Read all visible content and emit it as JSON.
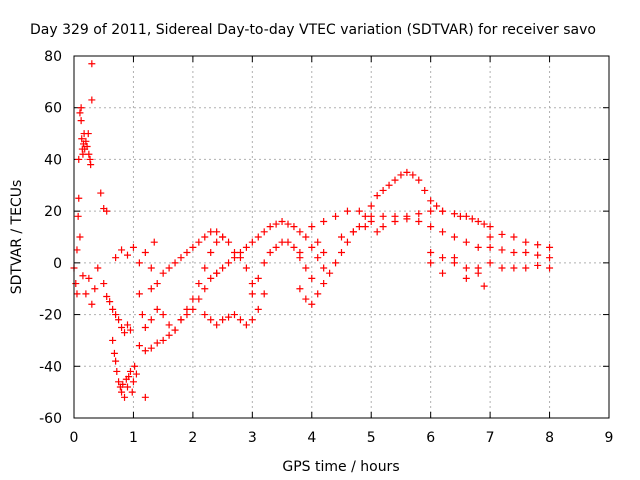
{
  "chart_data": {
    "type": "scatter",
    "title": "Day 329 of 2011, Sidereal Day-to-day VTEC variation (SDTVAR) for receiver savo",
    "xlabel": "GPS time / hours",
    "ylabel": "SDTVAR / TECUs",
    "xlim": [
      0,
      9
    ],
    "ylim": [
      -60,
      80
    ],
    "xticks": [
      0,
      1,
      2,
      3,
      4,
      5,
      6,
      7,
      8,
      9
    ],
    "yticks": [
      -60,
      -40,
      -20,
      0,
      20,
      40,
      60,
      80
    ],
    "grid": true,
    "marker": "+",
    "color": "#ff0000",
    "series": [
      {
        "name": "SDTVAR",
        "points": [
          [
            0.0,
            -2
          ],
          [
            0.03,
            -8
          ],
          [
            0.05,
            5
          ],
          [
            0.05,
            -12
          ],
          [
            0.07,
            18
          ],
          [
            0.08,
            40
          ],
          [
            0.08,
            25
          ],
          [
            0.1,
            58
          ],
          [
            0.1,
            10
          ],
          [
            0.12,
            60
          ],
          [
            0.12,
            55
          ],
          [
            0.13,
            48
          ],
          [
            0.14,
            44
          ],
          [
            0.15,
            42
          ],
          [
            0.16,
            46
          ],
          [
            0.17,
            50
          ],
          [
            0.18,
            44
          ],
          [
            0.2,
            47
          ],
          [
            0.22,
            45
          ],
          [
            0.24,
            50
          ],
          [
            0.25,
            42
          ],
          [
            0.27,
            40
          ],
          [
            0.28,
            38
          ],
          [
            0.3,
            77
          ],
          [
            0.3,
            63
          ],
          [
            0.15,
            -5
          ],
          [
            0.2,
            -12
          ],
          [
            0.25,
            -6
          ],
          [
            0.3,
            -16
          ],
          [
            0.35,
            -10
          ],
          [
            0.4,
            -2
          ],
          [
            0.45,
            27
          ],
          [
            0.5,
            21
          ],
          [
            0.5,
            -8
          ],
          [
            0.55,
            20
          ],
          [
            0.55,
            -13
          ],
          [
            0.6,
            -15
          ],
          [
            0.65,
            -18
          ],
          [
            0.7,
            -20
          ],
          [
            0.75,
            -22
          ],
          [
            0.8,
            -25
          ],
          [
            0.85,
            -27
          ],
          [
            0.9,
            -24
          ],
          [
            0.95,
            -26
          ],
          [
            0.65,
            -30
          ],
          [
            0.68,
            -35
          ],
          [
            0.7,
            -38
          ],
          [
            0.72,
            -42
          ],
          [
            0.75,
            -46
          ],
          [
            0.78,
            -48
          ],
          [
            0.8,
            -50
          ],
          [
            0.82,
            -47
          ],
          [
            0.85,
            -52
          ],
          [
            0.88,
            -45
          ],
          [
            0.9,
            -48
          ],
          [
            0.92,
            -44
          ],
          [
            0.95,
            -42
          ],
          [
            0.98,
            -50
          ],
          [
            1.0,
            -46
          ],
          [
            1.02,
            -40
          ],
          [
            1.05,
            -43
          ],
          [
            1.2,
            -52
          ],
          [
            0.7,
            2
          ],
          [
            0.8,
            5
          ],
          [
            0.9,
            3
          ],
          [
            1.0,
            6
          ],
          [
            1.1,
            0
          ],
          [
            1.2,
            4
          ],
          [
            1.3,
            -2
          ],
          [
            1.35,
            8
          ],
          [
            1.1,
            -12
          ],
          [
            1.15,
            -20
          ],
          [
            1.2,
            -25
          ],
          [
            1.3,
            -22
          ],
          [
            1.4,
            -18
          ],
          [
            1.5,
            -20
          ],
          [
            1.6,
            -24
          ],
          [
            1.7,
            -26
          ],
          [
            1.8,
            -22
          ],
          [
            1.9,
            -20
          ],
          [
            2.0,
            -18
          ],
          [
            2.1,
            -14
          ],
          [
            2.2,
            -10
          ],
          [
            2.3,
            -6
          ],
          [
            2.4,
            -4
          ],
          [
            1.1,
            -32
          ],
          [
            1.2,
            -34
          ],
          [
            1.3,
            -33
          ],
          [
            1.4,
            -31
          ],
          [
            1.5,
            -30
          ],
          [
            1.6,
            -28
          ],
          [
            1.7,
            -26
          ],
          [
            1.8,
            -22
          ],
          [
            1.9,
            -18
          ],
          [
            2.0,
            -14
          ],
          [
            2.1,
            -8
          ],
          [
            2.2,
            -2
          ],
          [
            2.3,
            4
          ],
          [
            2.4,
            8
          ],
          [
            2.5,
            10
          ],
          [
            1.3,
            -10
          ],
          [
            1.4,
            -8
          ],
          [
            1.5,
            -4
          ],
          [
            1.6,
            -2
          ],
          [
            1.7,
            0
          ],
          [
            1.8,
            2
          ],
          [
            1.9,
            4
          ],
          [
            2.0,
            6
          ],
          [
            2.1,
            8
          ],
          [
            2.2,
            10
          ],
          [
            2.3,
            12
          ],
          [
            2.4,
            12
          ],
          [
            2.5,
            10
          ],
          [
            2.6,
            8
          ],
          [
            2.7,
            4
          ],
          [
            2.8,
            2
          ],
          [
            2.9,
            -2
          ],
          [
            3.0,
            -8
          ],
          [
            2.2,
            -20
          ],
          [
            2.3,
            -22
          ],
          [
            2.4,
            -24
          ],
          [
            2.5,
            -22
          ],
          [
            2.6,
            -21
          ],
          [
            2.7,
            -20
          ],
          [
            2.8,
            -22
          ],
          [
            2.9,
            -24
          ],
          [
            3.0,
            -22
          ],
          [
            3.1,
            -18
          ],
          [
            3.2,
            -12
          ],
          [
            2.4,
            -4
          ],
          [
            2.5,
            -2
          ],
          [
            2.6,
            0
          ],
          [
            2.7,
            2
          ],
          [
            2.8,
            4
          ],
          [
            2.9,
            6
          ],
          [
            3.0,
            8
          ],
          [
            3.1,
            10
          ],
          [
            3.2,
            12
          ],
          [
            3.3,
            14
          ],
          [
            3.4,
            15
          ],
          [
            3.5,
            16
          ],
          [
            3.6,
            15
          ],
          [
            3.7,
            14
          ],
          [
            3.8,
            12
          ],
          [
            3.9,
            10
          ],
          [
            4.0,
            6
          ],
          [
            4.1,
            2
          ],
          [
            4.2,
            -2
          ],
          [
            4.1,
            8
          ],
          [
            4.2,
            4
          ],
          [
            3.0,
            -12
          ],
          [
            3.1,
            -6
          ],
          [
            3.2,
            0
          ],
          [
            3.3,
            4
          ],
          [
            3.4,
            6
          ],
          [
            3.5,
            8
          ],
          [
            3.6,
            8
          ],
          [
            3.7,
            6
          ],
          [
            3.8,
            2
          ],
          [
            3.9,
            -2
          ],
          [
            4.0,
            -6
          ],
          [
            3.8,
            -10
          ],
          [
            3.9,
            -14
          ],
          [
            4.0,
            -16
          ],
          [
            4.1,
            -12
          ],
          [
            4.2,
            -8
          ],
          [
            4.3,
            -4
          ],
          [
            4.4,
            0
          ],
          [
            4.5,
            4
          ],
          [
            4.6,
            8
          ],
          [
            4.7,
            12
          ],
          [
            4.8,
            14
          ],
          [
            4.9,
            18
          ],
          [
            3.8,
            4
          ],
          [
            4.0,
            14
          ],
          [
            4.2,
            16
          ],
          [
            4.4,
            18
          ],
          [
            4.6,
            20
          ],
          [
            4.8,
            20
          ],
          [
            5.0,
            18
          ],
          [
            4.5,
            10
          ],
          [
            4.7,
            12
          ],
          [
            4.9,
            14
          ],
          [
            5.0,
            16
          ],
          [
            5.0,
            22
          ],
          [
            5.1,
            26
          ],
          [
            5.2,
            28
          ],
          [
            5.3,
            30
          ],
          [
            5.4,
            32
          ],
          [
            5.5,
            34
          ],
          [
            5.6,
            35
          ],
          [
            5.7,
            34
          ],
          [
            5.8,
            32
          ],
          [
            5.9,
            28
          ],
          [
            6.0,
            24
          ],
          [
            6.1,
            22
          ],
          [
            6.2,
            20
          ],
          [
            5.1,
            12
          ],
          [
            5.2,
            14
          ],
          [
            5.4,
            16
          ],
          [
            5.6,
            18
          ],
          [
            5.8,
            19
          ],
          [
            6.0,
            20
          ],
          [
            6.2,
            20
          ],
          [
            6.4,
            19
          ],
          [
            6.6,
            18
          ],
          [
            6.8,
            16
          ],
          [
            7.0,
            14
          ],
          [
            5.2,
            18
          ],
          [
            5.4,
            18
          ],
          [
            5.6,
            17
          ],
          [
            5.8,
            16
          ],
          [
            6.0,
            14
          ],
          [
            6.2,
            12
          ],
          [
            6.4,
            10
          ],
          [
            6.6,
            8
          ],
          [
            6.8,
            6
          ],
          [
            7.0,
            6
          ],
          [
            7.2,
            5
          ],
          [
            7.4,
            4
          ],
          [
            7.6,
            4
          ],
          [
            7.8,
            3
          ],
          [
            8.0,
            2
          ],
          [
            6.0,
            4
          ],
          [
            6.2,
            2
          ],
          [
            6.4,
            0
          ],
          [
            6.6,
            -2
          ],
          [
            6.8,
            -2
          ],
          [
            7.0,
            0
          ],
          [
            7.2,
            -2
          ],
          [
            7.4,
            -2
          ],
          [
            7.6,
            -2
          ],
          [
            7.8,
            -1
          ],
          [
            8.0,
            -2
          ],
          [
            7.0,
            10
          ],
          [
            7.2,
            11
          ],
          [
            7.4,
            10
          ],
          [
            7.6,
            8
          ],
          [
            7.8,
            7
          ],
          [
            8.0,
            6
          ],
          [
            6.0,
            0
          ],
          [
            6.2,
            -4
          ],
          [
            6.4,
            2
          ],
          [
            6.6,
            -6
          ],
          [
            6.8,
            -4
          ],
          [
            6.9,
            -9
          ],
          [
            6.5,
            18
          ],
          [
            6.7,
            17
          ],
          [
            6.9,
            15
          ]
        ]
      }
    ]
  }
}
